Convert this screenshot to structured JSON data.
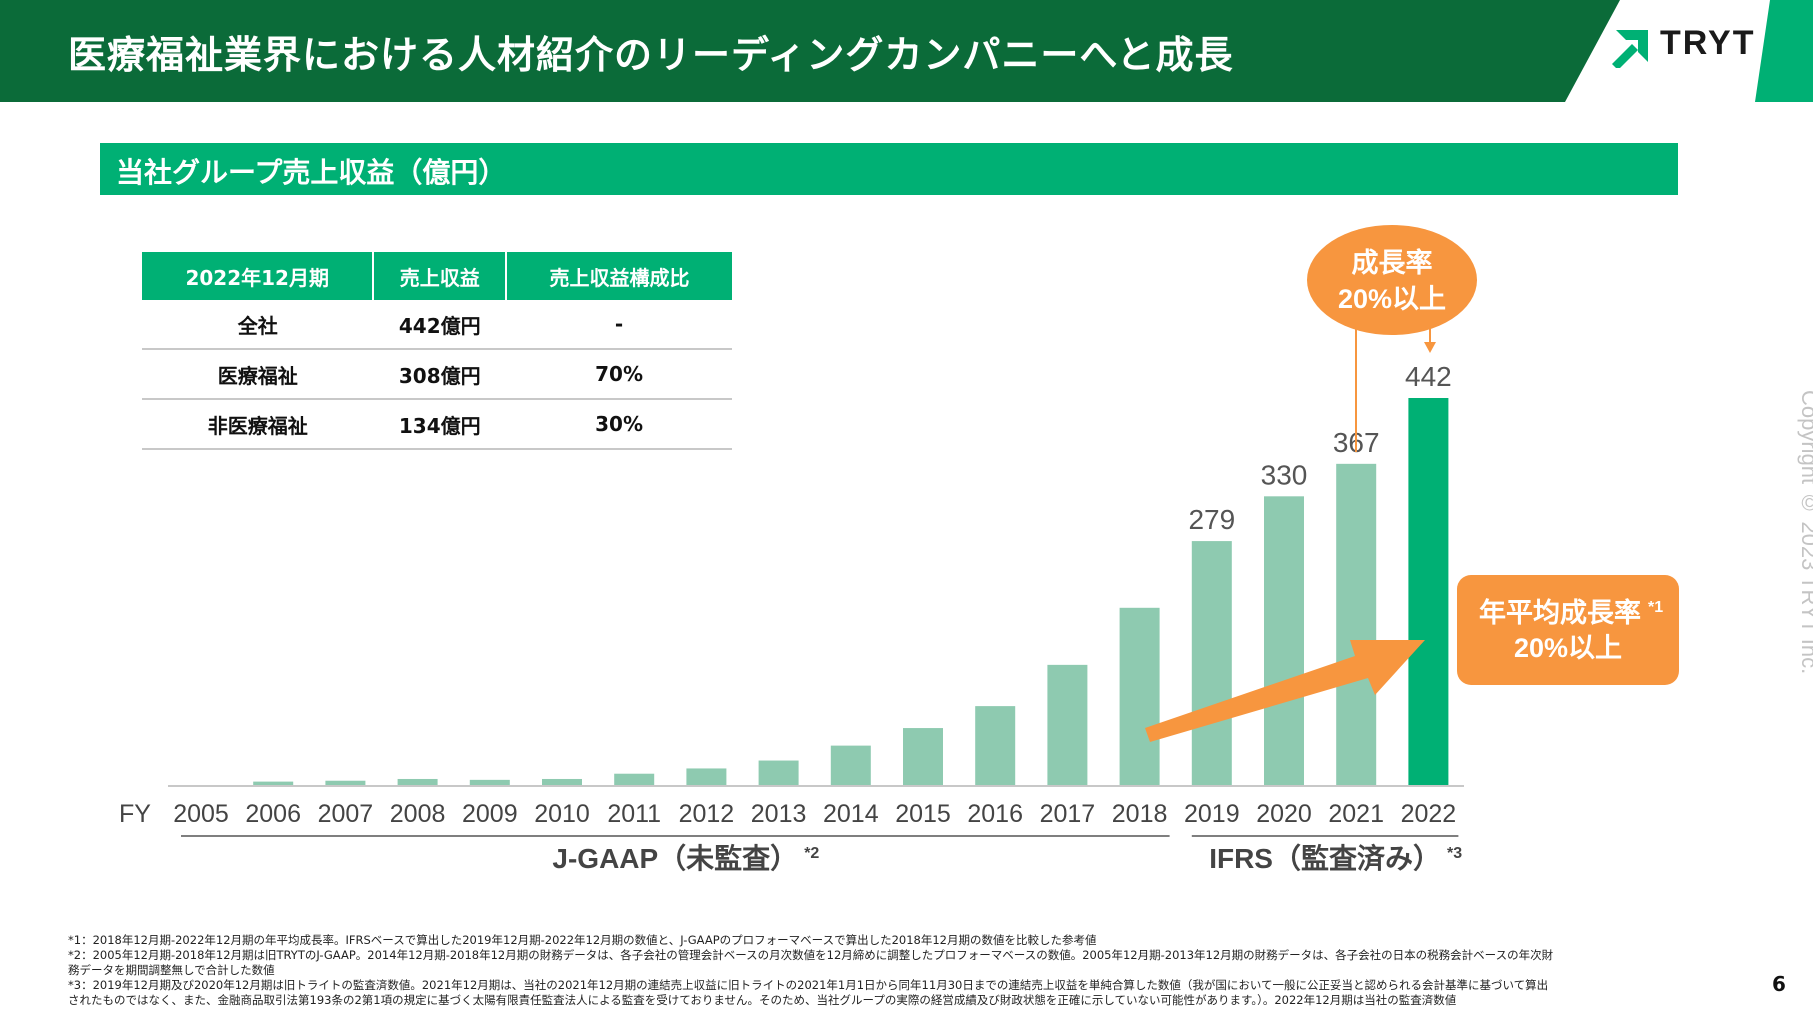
{
  "header": {
    "title": "医療福祉業界における人材紹介のリーディングカンパニーへと成長",
    "logo_text": "TRYT",
    "bg_color": "#0b6b39",
    "accent_color": "#00b074"
  },
  "section": {
    "title": "当社グループ売上収益（億円）"
  },
  "summary_table": {
    "headers": [
      "2022年12月期",
      "売上収益",
      "売上収益構成比"
    ],
    "rows": [
      [
        "全社",
        "442億円",
        "-"
      ],
      [
        "医療福祉",
        "308億円",
        "70%"
      ],
      [
        "非医療福祉",
        "134億円",
        "30%"
      ]
    ]
  },
  "chart_data": {
    "type": "bar",
    "x_prefix": "FY",
    "categories": [
      "2005",
      "2006",
      "2007",
      "2008",
      "2009",
      "2010",
      "2011",
      "2012",
      "2013",
      "2014",
      "2015",
      "2016",
      "2017",
      "2018",
      "2019",
      "2020",
      "2021",
      "2022"
    ],
    "values": [
      1,
      5,
      6,
      8,
      7,
      8,
      14,
      20,
      29,
      46,
      66,
      91,
      138,
      203,
      279,
      330,
      367,
      442
    ],
    "labels": [
      "",
      "",
      "",
      "",
      "",
      "",
      "",
      "",
      "",
      "",
      "",
      "",
      "",
      "",
      "279",
      "330",
      "367",
      "442"
    ],
    "ylim": [
      0,
      442
    ],
    "colors": {
      "normal": "#8ecab0",
      "highlight": "#00b074"
    },
    "groups": [
      {
        "label": "J-GAAP（未監査）",
        "note": "*2",
        "from": "2005",
        "to": "2018"
      },
      {
        "label": "IFRS（監査済み）",
        "note": "*3",
        "from": "2019",
        "to": "2022"
      }
    ],
    "callouts": {
      "growth_bubble": {
        "line1": "成長率",
        "line2": "20%以上",
        "color": "#f7963f"
      },
      "cagr_box": {
        "line1": "年平均成長率",
        "note": "*1",
        "line2": "20%以上",
        "color": "#f7963f"
      }
    }
  },
  "copyright": "Copyright © 2023 TRYT Inc.",
  "page_number": "6",
  "footnotes": [
    "*1：2018年12月期-2022年12月期の年平均成長率。IFRSベースで算出した2019年12月期-2022年12月期の数値と、J-GAAPのプロフォーマベースで算出した2018年12月期の数値を比較した参考値",
    "*2：2005年12月期-2018年12月期は旧TRYTのJ-GAAP。2014年12月期-2018年12月期の財務データは、各子会社の管理会計ベースの月次数値を12月締めに調整したプロフォーマベースの数値。2005年12月期-2013年12月期の財務データは、各子会社の日本の税務会計ベースの年次財",
    "務データを期間調整無しで合計した数値",
    "*3：2019年12月期及び2020年12月期は旧トライトの監査済数値。2021年12月期は、当社の2021年12月期の連結売上収益に旧トライトの2021年1月1日から同年11月30日までの連結売上収益を単純合算した数値（我が国において一般に公正妥当と認められる会計基準に基づいて算出",
    "されたものではなく、また、金融商品取引法第193条の2第1項の規定に基づく太陽有限責任監査法人による監査を受けておりません。そのため、当社グループの実際の経営成績及び財政状態を正確に示していない可能性があります。）。2022年12月期は当社の監査済数値"
  ]
}
